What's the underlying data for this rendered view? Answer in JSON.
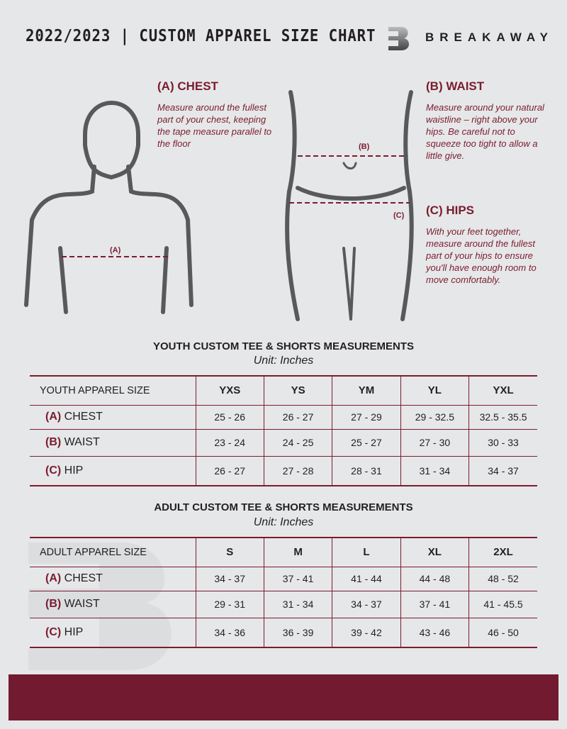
{
  "header": {
    "title": "2022/2023  |  CUSTOM APPAREL SIZE CHART",
    "brand": "BREAKAWAY",
    "logo_letter": "B"
  },
  "guide": {
    "chest": {
      "heading": "(A) CHEST",
      "text": "Measure around the fullest part of your chest, keeping the tape measure parallel to the floor",
      "marker": "(A)"
    },
    "waist": {
      "heading": "(B) WAIST",
      "text": "Measure around your natural waistline – right above your hips. Be careful not to squeeze too tight to allow a little give.",
      "marker": "(B)"
    },
    "hips": {
      "heading": "(C) HIPS",
      "text": "With your feet together, measure around the fullest part of your hips to ensure you'll have enough room to move comfortably.",
      "marker": "(C)"
    }
  },
  "youth": {
    "title": "YOUTH CUSTOM TEE & SHORTS MEASUREMENTS",
    "unit": "Unit: Inches",
    "header": [
      "YOUTH APPAREL SIZE",
      "YXS",
      "YS",
      "YM",
      "YL",
      "YXL"
    ],
    "rows": [
      {
        "tag": "(A)",
        "name": "CHEST",
        "values": [
          "25 - 26",
          "26 - 27",
          "27 - 29",
          "29 - 32.5",
          "32.5 - 35.5"
        ]
      },
      {
        "tag": "(B)",
        "name": "WAIST",
        "values": [
          "23 - 24",
          "24 - 25",
          "25 - 27",
          "27 - 30",
          "30 - 33"
        ]
      },
      {
        "tag": "(C)",
        "name": "HIP",
        "values": [
          "26 - 27",
          "27 - 28",
          "28 - 31",
          "31 - 34",
          "34 - 37"
        ]
      }
    ]
  },
  "adult": {
    "title": "ADULT CUSTOM TEE & SHORTS MEASUREMENTS",
    "unit": "Unit: Inches",
    "header": [
      "ADULT APPAREL SIZE",
      "S",
      "M",
      "L",
      "XL",
      "2XL"
    ],
    "rows": [
      {
        "tag": "(A)",
        "name": "CHEST",
        "values": [
          "34 - 37",
          "37 - 41",
          "41 - 44",
          "44 - 48",
          "48 - 52"
        ]
      },
      {
        "tag": "(B)",
        "name": "WAIST",
        "values": [
          "29 - 31",
          "31 - 34",
          "34 - 37",
          "37 - 41",
          "41 - 45.5"
        ]
      },
      {
        "tag": "(C)",
        "name": "HIP",
        "values": [
          "34 - 36",
          "36 - 39",
          "39 - 42",
          "43 - 46",
          "46 - 50"
        ]
      }
    ]
  },
  "colors": {
    "accent": "#7a1c30",
    "background": "#e6e7e8",
    "footer": "#721a2f"
  }
}
